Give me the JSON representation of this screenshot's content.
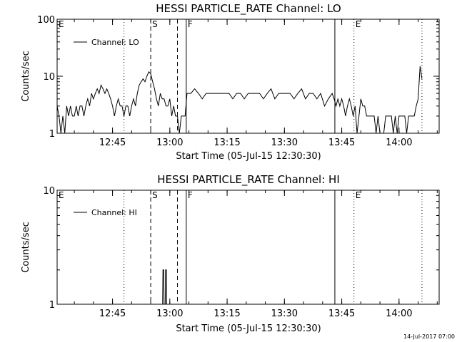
{
  "chart_data": [
    {
      "type": "line",
      "title": "HESSI PARTICLE_RATE Channel: LO",
      "xlabel": "Start Time (05-Jul-15 12:30:30)",
      "ylabel": "Counts/sec",
      "xlim_minutes": [
        0,
        100
      ],
      "ylim": [
        1,
        100
      ],
      "yscale": "log",
      "x_ticks": [
        "12:45",
        "13:00",
        "13:15",
        "13:30",
        "13:45",
        "14:00"
      ],
      "x_tick_minutes": [
        14.5,
        29.5,
        44.5,
        59.5,
        74.5,
        89.5
      ],
      "y_ticks": [
        "1",
        "10",
        "100"
      ],
      "y_tick_values": [
        1,
        10,
        100
      ],
      "legend": "Channel: LO",
      "markers": [
        {
          "label": "E",
          "minute": 0,
          "style": "none"
        },
        {
          "label": "",
          "minute": 17.5,
          "style": "dotted"
        },
        {
          "label": "S",
          "minute": 24.5,
          "style": "dashed"
        },
        {
          "label": "",
          "minute": 31.5,
          "style": "dashed"
        },
        {
          "label": "F",
          "minute": 33.8,
          "style": "solid"
        },
        {
          "label": "",
          "minute": 72.7,
          "style": "solid"
        },
        {
          "label": "E",
          "minute": 77.7,
          "style": "dotted"
        },
        {
          "label": "",
          "minute": 95.5,
          "style": "dotted"
        }
      ],
      "series": [
        {
          "x": [
            0,
            0.5,
            1,
            1.5,
            2,
            2.5,
            3,
            3.5,
            4,
            4.5,
            5,
            5.5,
            6,
            6.5,
            7,
            7.5,
            8,
            8.5,
            9,
            9.5,
            10,
            10.5,
            11,
            11.5,
            12,
            12.5,
            13,
            13.5,
            14,
            14.5,
            15,
            15.5,
            16,
            16.5,
            17,
            17.5,
            18,
            18.5,
            19,
            19.5,
            20,
            20.5,
            21,
            21.5,
            22,
            22.5,
            23,
            23.5,
            24,
            24.5,
            25,
            25.5,
            26,
            26.5,
            27,
            27.5,
            28,
            28.5,
            29,
            29.5,
            30,
            30.5,
            31,
            31.5,
            32,
            32.5,
            33,
            33.5,
            34,
            35,
            36,
            37,
            38,
            39,
            40,
            41,
            42,
            43,
            44,
            45,
            46,
            47,
            48,
            49,
            50,
            51,
            52,
            53,
            54,
            55,
            56,
            57,
            58,
            59,
            60,
            61,
            62,
            63,
            64,
            65,
            66,
            67,
            68,
            69,
            70,
            71,
            72,
            72.5,
            73,
            73.5,
            74,
            74.5,
            75,
            75.5,
            76,
            76.5,
            77,
            77.5,
            78,
            78.5,
            79,
            79.5,
            80,
            80.5,
            81,
            81.5,
            82,
            82.5,
            83,
            83.5,
            84,
            84.5,
            85,
            85.5,
            86,
            86.5,
            87,
            87.5,
            88,
            88.5,
            89,
            89.5,
            90,
            90.5,
            91,
            91.5,
            92,
            92.5,
            93,
            93.5,
            94,
            94.5,
            95,
            95.5
          ],
          "y": [
            3,
            2,
            1,
            2,
            1,
            3,
            2,
            3,
            2,
            2,
            3,
            2,
            3,
            3,
            2,
            3,
            4,
            3,
            5,
            4,
            5,
            6,
            5,
            7,
            6,
            5,
            6,
            5,
            4,
            3,
            2,
            3,
            4,
            3,
            3,
            2,
            3,
            3,
            2,
            3,
            4,
            3,
            5,
            7,
            8,
            9,
            8,
            10,
            12,
            11,
            8,
            6,
            4,
            3,
            5,
            4,
            4,
            3,
            3,
            4,
            2,
            3,
            2,
            2,
            1,
            2,
            2,
            2,
            5,
            5,
            6,
            5,
            4,
            5,
            5,
            5,
            5,
            5,
            5,
            5,
            4,
            5,
            5,
            4,
            5,
            5,
            5,
            5,
            4,
            5,
            6,
            4,
            5,
            5,
            5,
            5,
            4,
            5,
            6,
            4,
            5,
            5,
            4,
            5,
            3,
            4,
            5,
            4,
            3,
            4,
            3,
            4,
            3,
            2,
            3,
            4,
            3,
            2,
            3,
            1,
            2,
            4,
            3,
            3,
            2,
            2,
            2,
            2,
            2,
            1,
            2,
            1,
            1,
            1,
            2,
            2,
            2,
            2,
            1,
            2,
            1,
            2,
            2,
            2,
            2,
            1,
            2,
            2,
            2,
            2,
            3,
            4,
            15,
            9
          ]
        }
      ]
    },
    {
      "type": "line",
      "title": "HESSI PARTICLE_RATE Channel: HI",
      "xlabel": "Start Time (05-Jul-15 12:30:30)",
      "ylabel": "Counts/sec",
      "xlim_minutes": [
        0,
        100
      ],
      "ylim": [
        1,
        10
      ],
      "yscale": "log",
      "x_ticks": [
        "12:45",
        "13:00",
        "13:15",
        "13:30",
        "13:45",
        "14:00"
      ],
      "x_tick_minutes": [
        14.5,
        29.5,
        44.5,
        59.5,
        74.5,
        89.5
      ],
      "y_ticks": [
        "1",
        "10"
      ],
      "y_tick_values": [
        1,
        10
      ],
      "legend": "Channel: HI",
      "markers": [
        {
          "label": "E",
          "minute": 0,
          "style": "none"
        },
        {
          "label": "",
          "minute": 17.5,
          "style": "dotted"
        },
        {
          "label": "S",
          "minute": 24.5,
          "style": "dashed"
        },
        {
          "label": "",
          "minute": 31.5,
          "style": "dashed"
        },
        {
          "label": "F",
          "minute": 33.8,
          "style": "solid"
        },
        {
          "label": "",
          "minute": 72.7,
          "style": "solid"
        },
        {
          "label": "E",
          "minute": 77.7,
          "style": "dotted"
        },
        {
          "label": "",
          "minute": 95.5,
          "style": "dotted"
        }
      ],
      "series": [
        {
          "x": [
            27.6,
            27.7,
            27.9,
            28.0,
            28.3,
            28.4,
            28.6,
            28.7
          ],
          "y": [
            1,
            2,
            2,
            1,
            1,
            2,
            2,
            1
          ]
        }
      ]
    }
  ],
  "timestamp": "14-Jul-2017 07:00"
}
